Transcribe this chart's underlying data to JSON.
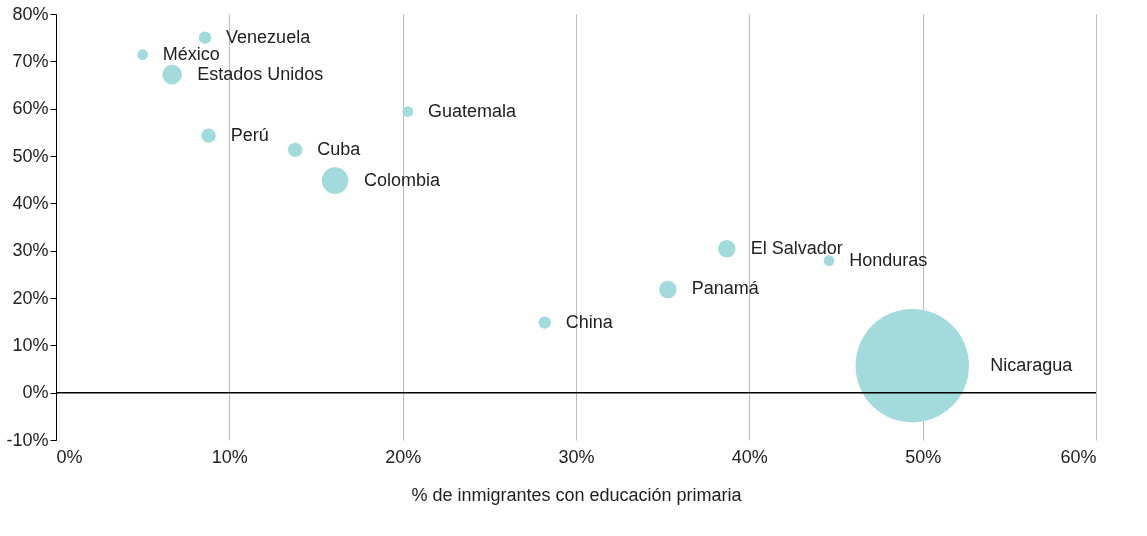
{
  "chart_data": {
    "type": "bubble",
    "xlabel": "% de inmigrantes con educación primaria",
    "color": "#a3dadb",
    "series": [
      {
        "name": "Venezuela",
        "x": [
          8.6
        ],
        "values": [
          75.0
        ],
        "sizes": [
          0.012
        ]
      },
      {
        "name": "México",
        "x": [
          5.0
        ],
        "values": [
          71.4
        ],
        "sizes": [
          0.009
        ]
      },
      {
        "name": "Estados Unidos",
        "x": [
          6.7
        ],
        "values": [
          67.2
        ],
        "sizes": [
          0.03
        ]
      },
      {
        "name": "Guatemala",
        "x": [
          20.3
        ],
        "values": [
          59.4
        ],
        "sizes": [
          0.009
        ]
      },
      {
        "name": "Perú",
        "x": [
          8.8
        ],
        "values": [
          54.3
        ],
        "sizes": [
          0.016
        ]
      },
      {
        "name": "Cuba",
        "x": [
          13.8
        ],
        "values": [
          51.3
        ],
        "sizes": [
          0.016
        ]
      },
      {
        "name": "Colombia",
        "x": [
          16.1
        ],
        "values": [
          44.8
        ],
        "sizes": [
          0.055
        ]
      },
      {
        "name": "El Salvador",
        "x": [
          38.7
        ],
        "values": [
          30.4
        ],
        "sizes": [
          0.024
        ]
      },
      {
        "name": "Honduras",
        "x": [
          44.6
        ],
        "values": [
          27.9
        ],
        "sizes": [
          0.009
        ]
      },
      {
        "name": "Panamá",
        "x": [
          35.3
        ],
        "values": [
          21.8
        ],
        "sizes": [
          0.024
        ]
      },
      {
        "name": "China",
        "x": [
          28.2
        ],
        "values": [
          14.8
        ],
        "sizes": [
          0.012
        ]
      },
      {
        "name": "Nicaragua",
        "x": [
          49.4
        ],
        "values": [
          5.7
        ],
        "sizes": [
          1
        ]
      }
    ],
    "xlim": [
      0,
      60
    ],
    "xticks": [
      {
        "value": 0,
        "label": "0%"
      },
      {
        "value": 10,
        "label": "10%"
      },
      {
        "value": 20,
        "label": "20%"
      },
      {
        "value": 30,
        "label": "30%"
      },
      {
        "value": 40,
        "label": "40%"
      },
      {
        "value": 50,
        "label": "50%"
      },
      {
        "value": 60,
        "label": "60%"
      }
    ],
    "ylim": [
      -10,
      80
    ],
    "yticks": [
      {
        "value": -10,
        "label": "-10%"
      },
      {
        "value": 0,
        "label": "0%"
      },
      {
        "value": 10,
        "label": "10%"
      },
      {
        "value": 20,
        "label": "20%"
      },
      {
        "value": 30,
        "label": "30%"
      },
      {
        "value": 40,
        "label": "40%"
      },
      {
        "value": 50,
        "label": "50%"
      },
      {
        "value": 60,
        "label": "60%"
      },
      {
        "value": 70,
        "label": "70%"
      },
      {
        "value": 80,
        "label": "80%"
      }
    ],
    "ref_lines": [
      {
        "axis": "y",
        "value": 0,
        "color": "#000000"
      }
    ],
    "grid": "x"
  }
}
